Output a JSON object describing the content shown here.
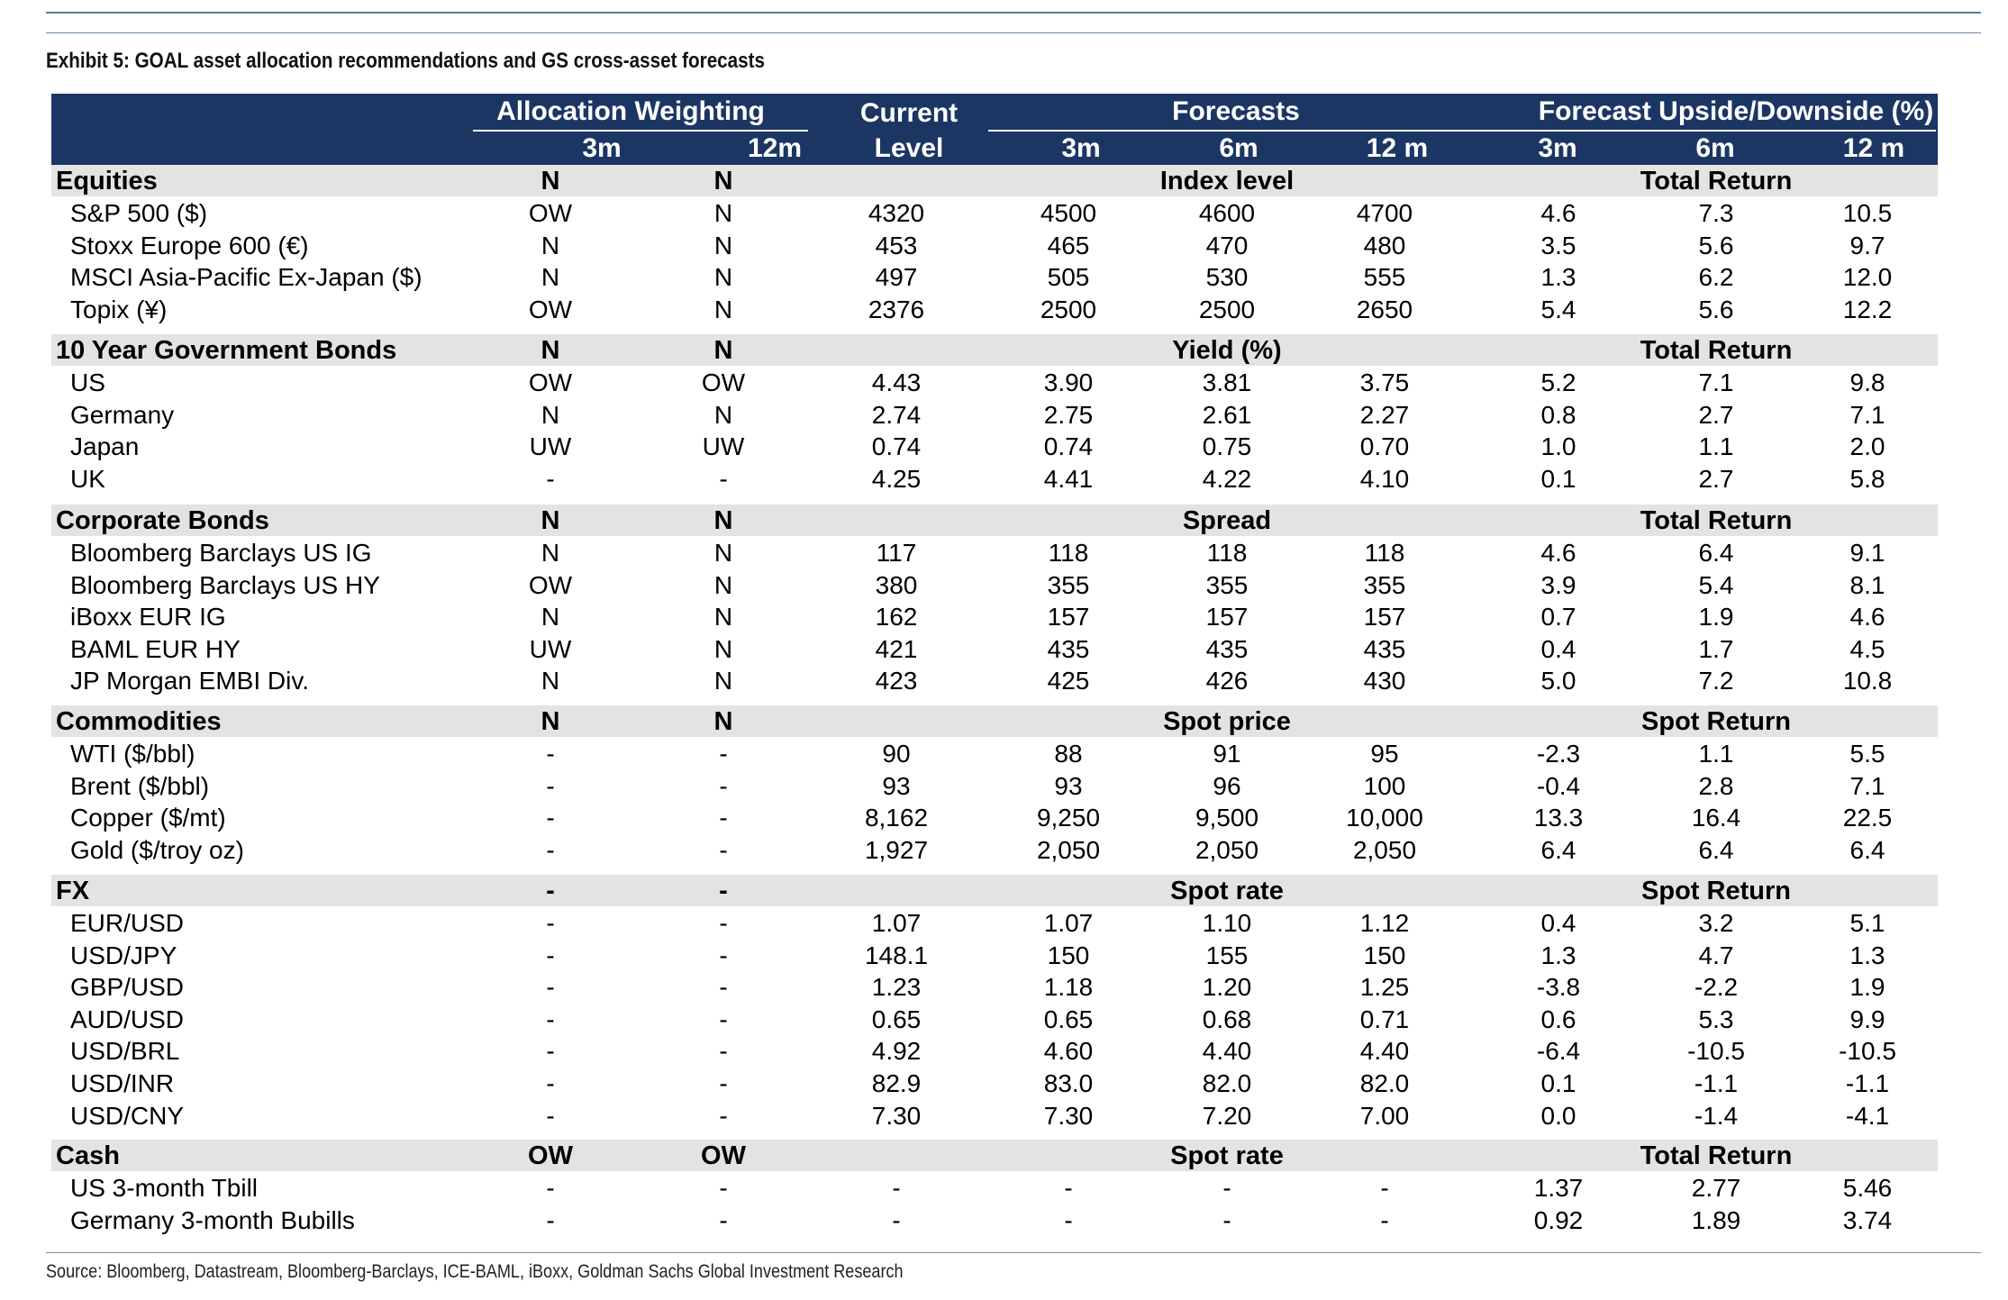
{
  "title": "Exhibit 5: GOAL asset allocation recommendations and GS cross-asset forecasts",
  "source": "Source: Bloomberg, Datastream, Bloomberg-Barclays, ICE-BAML, iBoxx, Goldman Sachs Global Investment Research",
  "header": {
    "allocation": "Allocation Weighting",
    "current": "Current",
    "level": "Level",
    "forecasts": "Forecasts",
    "upside": "Forecast Upside/Downside (%)",
    "sub": [
      "3m",
      "12m",
      "3m",
      "6m",
      "12 m",
      "3m",
      "6m",
      "12 m"
    ]
  },
  "sections": [
    {
      "label": "Equities",
      "w3": "N",
      "w12": "N",
      "mid": "Index level",
      "right": "Total Return",
      "rows": [
        {
          "label": "S&P 500 ($)",
          "c": [
            "OW",
            "N",
            "4320",
            "4500",
            "4600",
            "4700",
            "4.6",
            "7.3",
            "10.5"
          ]
        },
        {
          "label": "Stoxx Europe 600 (€)",
          "c": [
            "N",
            "N",
            "453",
            "465",
            "470",
            "480",
            "3.5",
            "5.6",
            "9.7"
          ]
        },
        {
          "label": "MSCI Asia-Pacific Ex-Japan ($)",
          "c": [
            "N",
            "N",
            "497",
            "505",
            "530",
            "555",
            "1.3",
            "6.2",
            "12.0"
          ]
        },
        {
          "label": "Topix (¥)",
          "c": [
            "OW",
            "N",
            "2376",
            "2500",
            "2500",
            "2650",
            "5.4",
            "5.6",
            "12.2"
          ]
        }
      ]
    },
    {
      "label": "10 Year Government Bonds",
      "w3": "N",
      "w12": "N",
      "mid": "Yield (%)",
      "right": "Total Return",
      "rows": [
        {
          "label": "US",
          "c": [
            "OW",
            "OW",
            "4.43",
            "3.90",
            "3.81",
            "3.75",
            "5.2",
            "7.1",
            "9.8"
          ]
        },
        {
          "label": "Germany",
          "c": [
            "N",
            "N",
            "2.74",
            "2.75",
            "2.61",
            "2.27",
            "0.8",
            "2.7",
            "7.1"
          ]
        },
        {
          "label": "Japan",
          "c": [
            "UW",
            "UW",
            "0.74",
            "0.74",
            "0.75",
            "0.70",
            "1.0",
            "1.1",
            "2.0"
          ]
        },
        {
          "label": "UK",
          "c": [
            "-",
            "-",
            "4.25",
            "4.41",
            "4.22",
            "4.10",
            "0.1",
            "2.7",
            "5.8"
          ]
        }
      ]
    },
    {
      "label": "Corporate Bonds",
      "w3": "N",
      "w12": "N",
      "mid": "Spread",
      "right": "Total Return",
      "rows": [
        {
          "label": "Bloomberg Barclays US IG",
          "c": [
            "N",
            "N",
            "117",
            "118",
            "118",
            "118",
            "4.6",
            "6.4",
            "9.1"
          ]
        },
        {
          "label": "Bloomberg Barclays US HY",
          "c": [
            "OW",
            "N",
            "380",
            "355",
            "355",
            "355",
            "3.9",
            "5.4",
            "8.1"
          ]
        },
        {
          "label": "iBoxx EUR IG",
          "c": [
            "N",
            "N",
            "162",
            "157",
            "157",
            "157",
            "0.7",
            "1.9",
            "4.6"
          ]
        },
        {
          "label": "BAML EUR HY",
          "c": [
            "UW",
            "N",
            "421",
            "435",
            "435",
            "435",
            "0.4",
            "1.7",
            "4.5"
          ]
        },
        {
          "label": "JP Morgan EMBI Div.",
          "c": [
            "N",
            "N",
            "423",
            "425",
            "426",
            "430",
            "5.0",
            "7.2",
            "10.8"
          ]
        }
      ]
    },
    {
      "label": "Commodities",
      "w3": "N",
      "w12": "N",
      "mid": "Spot price",
      "right": "Spot Return",
      "rows": [
        {
          "label": "WTI  ($/bbl)",
          "c": [
            "-",
            "-",
            "90",
            "88",
            "91",
            "95",
            "-2.3",
            "1.1",
            "5.5"
          ]
        },
        {
          "label": "Brent ($/bbl)",
          "c": [
            "-",
            "-",
            "93",
            "93",
            "96",
            "100",
            "-0.4",
            "2.8",
            "7.1"
          ]
        },
        {
          "label": "Copper ($/mt)",
          "c": [
            "-",
            "-",
            "8,162",
            "9,250",
            "9,500",
            "10,000",
            "13.3",
            "16.4",
            "22.5"
          ]
        },
        {
          "label": "Gold ($/troy oz)",
          "c": [
            "-",
            "-",
            "1,927",
            "2,050",
            "2,050",
            "2,050",
            "6.4",
            "6.4",
            "6.4"
          ]
        }
      ]
    },
    {
      "label": "FX",
      "w3": "-",
      "w12": "-",
      "mid": "Spot rate",
      "right": "Spot Return",
      "rows": [
        {
          "label": "EUR/USD",
          "c": [
            "-",
            "-",
            "1.07",
            "1.07",
            "1.10",
            "1.12",
            "0.4",
            "3.2",
            "5.1"
          ]
        },
        {
          "label": "USD/JPY",
          "c": [
            "-",
            "-",
            "148.1",
            "150",
            "155",
            "150",
            "1.3",
            "4.7",
            "1.3"
          ]
        },
        {
          "label": "GBP/USD",
          "c": [
            "-",
            "-",
            "1.23",
            "1.18",
            "1.20",
            "1.25",
            "-3.8",
            "-2.2",
            "1.9"
          ]
        },
        {
          "label": "AUD/USD",
          "c": [
            "-",
            "-",
            "0.65",
            "0.65",
            "0.68",
            "0.71",
            "0.6",
            "5.3",
            "9.9"
          ]
        },
        {
          "label": "USD/BRL",
          "c": [
            "-",
            "-",
            "4.92",
            "4.60",
            "4.40",
            "4.40",
            "-6.4",
            "-10.5",
            "-10.5"
          ]
        },
        {
          "label": "USD/INR",
          "c": [
            "-",
            "-",
            "82.9",
            "83.0",
            "82.0",
            "82.0",
            "0.1",
            "-1.1",
            "-1.1"
          ]
        },
        {
          "label": "USD/CNY",
          "c": [
            "-",
            "-",
            "7.30",
            "7.30",
            "7.20",
            "7.00",
            "0.0",
            "-1.4",
            "-4.1"
          ]
        }
      ]
    },
    {
      "label": "Cash",
      "w3": "OW",
      "w12": "OW",
      "mid": "Spot rate",
      "right": "Total Return",
      "rows": [
        {
          "label": "US 3-month Tbill",
          "c": [
            "-",
            "-",
            "-",
            "-",
            "-",
            "-",
            "1.37",
            "2.77",
            "5.46"
          ]
        },
        {
          "label": "Germany 3-month Bubills",
          "c": [
            "-",
            "-",
            "-",
            "-",
            "-",
            "-",
            "0.92",
            "1.89",
            "3.74"
          ]
        }
      ]
    }
  ]
}
